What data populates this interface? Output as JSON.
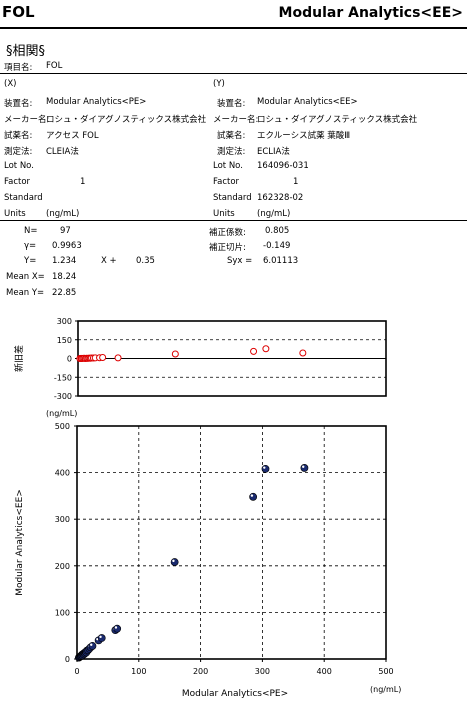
{
  "header": {
    "left": "FOL",
    "right": "Modular Analytics<EE>"
  },
  "section_title": "§相関§",
  "item": {
    "label": "項目名:",
    "value": "FOL"
  },
  "left_col": {
    "tag": "(X)",
    "rows": [
      {
        "label": "装置名:",
        "value": "Modular Analytics<PE>"
      },
      {
        "label": "メーカー名:",
        "value": "ロシュ・ダイアグノスティックス株式会社"
      },
      {
        "label": "試薬名:",
        "value": "アクセス FOL"
      },
      {
        "label": "測定法:",
        "value": "CLEIA法"
      },
      {
        "label": "Lot No.",
        "value": ""
      },
      {
        "label": "Factor",
        "value": "1"
      },
      {
        "label": "Standard",
        "value": ""
      },
      {
        "label": "Units",
        "value": "(ng/mL)"
      }
    ]
  },
  "right_col": {
    "tag": "(Y)",
    "rows": [
      {
        "label": "装置名:",
        "value": "Modular Analytics<EE>"
      },
      {
        "label": "メーカー名:",
        "value": "ロシュ・ダイアグノスティックス株式会社"
      },
      {
        "label": "試薬名:",
        "value": "エクルーシス試薬 葉酸Ⅲ"
      },
      {
        "label": "測定法:",
        "value": "ECLIA法"
      },
      {
        "label": "Lot No.",
        "value": "164096-031"
      },
      {
        "label": "Factor",
        "value": "1"
      },
      {
        "label": "Standard",
        "value": "162328-02"
      },
      {
        "label": "Units",
        "value": "(ng/mL)"
      }
    ]
  },
  "stats": {
    "n_label": "N=",
    "n_value": "97",
    "r_label": "γ=",
    "r_value": "0.9963",
    "y_label": "Y=",
    "slope": "1.234",
    "x_plus": "X +",
    "intercept": "0.35",
    "meanx_label": "Mean X=",
    "meanx_value": "18.24",
    "meany_label": "Mean Y=",
    "meany_value": "22.85",
    "coef_label": "補正係数:",
    "coef_value": "0.805",
    "icpt_label": "補正切片:",
    "icpt_value": "-0.149",
    "syx_label": "Syx =",
    "syx_value": "6.01113"
  },
  "chart_data": [
    {
      "type": "scatter",
      "title": "",
      "xlabel": "",
      "ylabel": "新旧差",
      "xlim": [
        0,
        500
      ],
      "ylim": [
        -300,
        300
      ],
      "yticks": [
        "300",
        "150",
        "0",
        "-150",
        "-300"
      ],
      "grid": "dashed horizontal",
      "color": "#dd0000",
      "points": [
        [
          3,
          0
        ],
        [
          5,
          1
        ],
        [
          6,
          0
        ],
        [
          8,
          1
        ],
        [
          10,
          2
        ],
        [
          12,
          0
        ],
        [
          14,
          2
        ],
        [
          16,
          1
        ],
        [
          18,
          3
        ],
        [
          20,
          2
        ],
        [
          22,
          4
        ],
        [
          25,
          4
        ],
        [
          28,
          5
        ],
        [
          35,
          6
        ],
        [
          40,
          8
        ],
        [
          65,
          5
        ],
        [
          158,
          36
        ],
        [
          285,
          57
        ],
        [
          305,
          78
        ],
        [
          365,
          44
        ]
      ]
    },
    {
      "type": "scatter",
      "title": "",
      "unit_label": "(ng/mL)",
      "xlabel": "Modular Analytics<PE>",
      "ylabel": "Modular Analytics<EE>",
      "xunit": "(ng/mL)",
      "xlim": [
        0,
        500
      ],
      "ylim": [
        0,
        500
      ],
      "xticks": [
        "0",
        "100",
        "200",
        "300",
        "400",
        "500"
      ],
      "yticks": [
        "500",
        "400",
        "300",
        "200",
        "100",
        "0"
      ],
      "grid": "dashed",
      "color": "#1a2a6e",
      "points": [
        [
          3,
          3
        ],
        [
          4,
          4
        ],
        [
          5,
          5
        ],
        [
          6,
          6
        ],
        [
          7,
          7
        ],
        [
          8,
          9
        ],
        [
          9,
          8
        ],
        [
          10,
          11
        ],
        [
          11,
          10
        ],
        [
          12,
          13
        ],
        [
          13,
          12
        ],
        [
          14,
          15
        ],
        [
          15,
          14
        ],
        [
          16,
          18
        ],
        [
          18,
          19
        ],
        [
          20,
          22
        ],
        [
          22,
          25
        ],
        [
          25,
          28
        ],
        [
          35,
          40
        ],
        [
          40,
          45
        ],
        [
          62,
          62
        ],
        [
          65,
          65
        ],
        [
          158,
          208
        ],
        [
          285,
          348
        ],
        [
          305,
          408
        ],
        [
          368,
          410
        ]
      ]
    }
  ]
}
